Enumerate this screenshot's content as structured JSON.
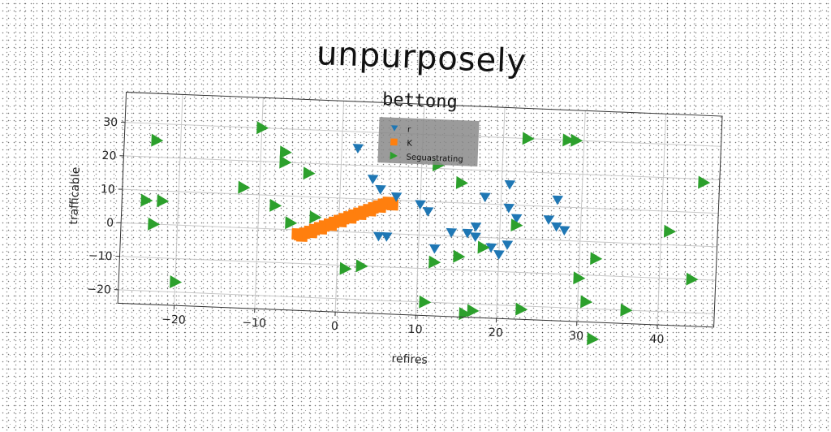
{
  "chart_data": {
    "type": "scatter",
    "title": "unpurposely",
    "subtitle": "bettong",
    "xlabel": "refires",
    "ylabel": "trafficable",
    "xlim": [
      -27,
      47
    ],
    "ylim": [
      -24,
      39
    ],
    "xticks": [
      -20,
      -10,
      0,
      10,
      20,
      30,
      40
    ],
    "yticks": [
      -20,
      -10,
      0,
      10,
      20,
      30
    ],
    "grid": true,
    "legend": {
      "position": "top-center",
      "labels": [
        "r",
        "K",
        "Seguastrating"
      ]
    },
    "series": [
      {
        "name": "r",
        "marker": "triangle-down",
        "color": "#1f77b4",
        "points": [
          [
            2,
            25
          ],
          [
            4,
            16
          ],
          [
            5,
            13
          ],
          [
            7,
            11
          ],
          [
            10,
            9
          ],
          [
            11,
            7
          ],
          [
            12,
            -4
          ],
          [
            5,
            -1
          ],
          [
            6,
            -1
          ],
          [
            14,
            1
          ],
          [
            16,
            1
          ],
          [
            17,
            3
          ],
          [
            18,
            12
          ],
          [
            17,
            0
          ],
          [
            19,
            -3
          ],
          [
            20,
            -5
          ],
          [
            21,
            16
          ],
          [
            21,
            9
          ],
          [
            22,
            6
          ],
          [
            21,
            -2
          ],
          [
            27,
            12
          ],
          [
            27,
            4
          ],
          [
            28,
            3
          ],
          [
            26,
            6
          ]
        ]
      },
      {
        "name": "K",
        "marker": "square",
        "color": "#ff7f0e",
        "points": [
          [
            -4.8,
            -1.5
          ],
          [
            -4.2,
            -0.9
          ],
          [
            -3.6,
            -0.3
          ],
          [
            -3.0,
            0.3
          ],
          [
            -2.4,
            0.9
          ],
          [
            -1.8,
            1.5
          ],
          [
            -1.2,
            2.1
          ],
          [
            -0.6,
            2.7
          ],
          [
            0,
            3.3
          ],
          [
            0.6,
            3.9
          ],
          [
            1.2,
            4.5
          ],
          [
            1.8,
            5.1
          ],
          [
            2.4,
            5.7
          ],
          [
            3.0,
            6.3
          ],
          [
            3.6,
            6.9
          ],
          [
            4.2,
            7.5
          ],
          [
            4.8,
            8.1
          ],
          [
            5.4,
            8.7
          ],
          [
            6.0,
            9.3
          ],
          [
            -4.5,
            -1.8
          ],
          [
            -3.3,
            -0.6
          ],
          [
            -2.1,
            0.6
          ],
          [
            -0.9,
            1.8
          ],
          [
            0.3,
            3.0
          ],
          [
            1.5,
            4.2
          ],
          [
            2.7,
            5.4
          ],
          [
            3.9,
            6.6
          ],
          [
            5.1,
            7.8
          ],
          [
            6.3,
            9.0
          ],
          [
            6.6,
            8.6
          ],
          [
            -5.1,
            -1.2
          ]
        ]
      },
      {
        "name": "Seguastrating",
        "marker": "triangle-right",
        "color": "#2ca02c",
        "points": [
          [
            -10,
            30
          ],
          [
            -7,
            23
          ],
          [
            -7,
            20
          ],
          [
            -4,
            17
          ],
          [
            -23,
            25
          ],
          [
            -24,
            7
          ],
          [
            -22,
            7
          ],
          [
            -23,
            0
          ],
          [
            -20,
            -17
          ],
          [
            -12,
            12
          ],
          [
            -8,
            7
          ],
          [
            -6,
            2
          ],
          [
            -3,
            4
          ],
          [
            1,
            -11
          ],
          [
            3,
            -10
          ],
          [
            12,
            -8
          ],
          [
            15,
            -6
          ],
          [
            11,
            -20
          ],
          [
            17,
            -22
          ],
          [
            16,
            -23
          ],
          [
            23,
            -21
          ],
          [
            18,
            -3
          ],
          [
            22,
            4
          ],
          [
            15,
            16
          ],
          [
            12,
            21
          ],
          [
            23,
            30
          ],
          [
            28,
            30
          ],
          [
            29,
            30
          ],
          [
            45,
            19
          ],
          [
            41,
            4
          ],
          [
            32,
            -5
          ],
          [
            30,
            -11
          ],
          [
            31,
            -18
          ],
          [
            36,
            -20
          ],
          [
            32,
            -29
          ],
          [
            44,
            -10
          ]
        ]
      }
    ]
  }
}
